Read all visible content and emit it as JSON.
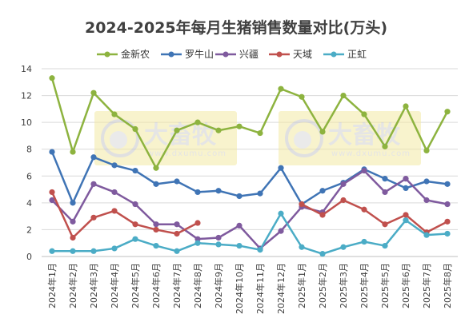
{
  "chart_data": {
    "type": "line",
    "title": "2024-2025年每月生猪销售数量对比(万头)",
    "categories": [
      "2024年1月",
      "2024年2月",
      "2024年3月",
      "2024年4月",
      "2024年5月",
      "2024年6月",
      "2024年7月",
      "2024年8月",
      "2024年9月",
      "2024年10月",
      "2024年11月",
      "2024年12月",
      "2025年1月",
      "2025年2月",
      "2025年3月",
      "2025年4月",
      "2025年5月",
      "2025年6月",
      "2025年7月",
      "2025年8月"
    ],
    "ylim": [
      0,
      14
    ],
    "yticks": [
      "0",
      "2",
      "4",
      "6",
      "8",
      "10",
      "12",
      "14"
    ],
    "grid": true,
    "legend_position": "top",
    "series": [
      {
        "name": "金新农",
        "color": "#8db33f",
        "values": [
          13.3,
          7.8,
          12.2,
          10.6,
          9.5,
          6.6,
          9.4,
          10.0,
          9.4,
          9.7,
          9.2,
          12.5,
          11.9,
          9.3,
          12.0,
          10.6,
          8.2,
          11.2,
          7.9,
          10.8
        ]
      },
      {
        "name": "罗牛山",
        "color": "#3f74b5",
        "values": [
          7.8,
          4.0,
          7.4,
          6.8,
          6.4,
          5.4,
          5.6,
          4.8,
          4.9,
          4.5,
          4.7,
          6.6,
          3.9,
          4.9,
          5.5,
          6.5,
          5.8,
          5.1,
          5.6,
          5.4
        ]
      },
      {
        "name": "兴疆",
        "color": "#7f5a9e",
        "values": [
          4.2,
          2.6,
          5.4,
          4.8,
          3.9,
          2.4,
          2.4,
          1.3,
          1.4,
          2.3,
          0.6,
          1.9,
          3.7,
          3.3,
          5.4,
          6.4,
          4.8,
          5.8,
          4.2,
          3.9
        ]
      },
      {
        "name": "天域",
        "color": "#c0504d",
        "values": [
          4.8,
          1.4,
          2.9,
          3.4,
          2.4,
          2.0,
          1.7,
          2.5,
          null,
          null,
          null,
          null,
          3.9,
          3.1,
          4.2,
          3.5,
          2.4,
          3.1,
          1.8,
          2.6
        ]
      },
      {
        "name": "正虹",
        "color": "#4bacc6",
        "values": [
          0.4,
          0.4,
          0.4,
          0.6,
          1.3,
          0.8,
          0.4,
          1.0,
          0.9,
          0.8,
          0.5,
          3.2,
          0.7,
          0.2,
          0.7,
          1.1,
          0.8,
          2.7,
          1.6,
          1.7
        ]
      }
    ]
  },
  "watermark": {
    "text_cn": "大畜牧",
    "text_en": "www.dxumu.com"
  }
}
